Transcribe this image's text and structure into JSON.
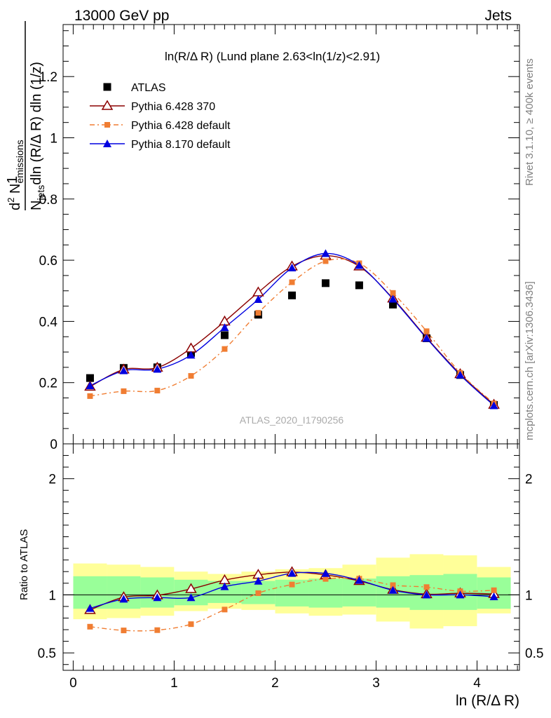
{
  "header": {
    "left": "13000 GeV pp",
    "right": "Jets"
  },
  "side": {
    "top": "Rivet 3.1.10, ≥ 400k events",
    "bottom": "mcplots.cern.ch [arXiv:1306.3436]"
  },
  "watermark": "ATLAS_2020_I1790256",
  "chart_data": {
    "type": "line",
    "title": "ln(R/Δ R) (Lund plane 2.63<ln(1/z)<2.91)",
    "ylabel_main": "1/N_jets d²N_emissions / dln(R/Δ R) dln(1/z)",
    "ylabel_ratio": "Ratio to ATLAS",
    "xlabel": "ln (R/Δ R)",
    "xlim": [
      -0.1,
      4.42
    ],
    "ylim_main": [
      0,
      1.37
    ],
    "ylim_ratio": [
      0.35,
      2.3
    ],
    "x_ticks": [
      "0",
      "1",
      "2",
      "3",
      "4"
    ],
    "y_ticks_main": [
      "0",
      "0.2",
      "0.4",
      "0.6",
      "0.8",
      "1",
      "1.2"
    ],
    "y_ticks_ratio": [
      "0.5",
      "1",
      "2"
    ],
    "x": [
      0.167,
      0.5,
      0.833,
      1.167,
      1.5,
      1.833,
      2.167,
      2.5,
      2.833,
      3.167,
      3.5,
      3.833,
      4.167
    ],
    "series": [
      {
        "name": "ATLAS",
        "color": "#000000",
        "marker": "square",
        "values": [
          0.215,
          0.248,
          0.25,
          0.297,
          0.355,
          0.422,
          0.485,
          0.525,
          0.518,
          0.455,
          0.345,
          0.225,
          0.127
        ]
      },
      {
        "name": "Pythia 6.428 370",
        "color": "#8b0000",
        "marker": "open-triangle",
        "values": [
          0.187,
          0.243,
          0.249,
          0.312,
          0.4,
          0.495,
          0.58,
          0.615,
          0.58,
          0.475,
          0.347,
          0.228,
          0.128
        ]
      },
      {
        "name": "Pythia 6.428 default",
        "color": "#f07d32",
        "marker": "small-square",
        "values": [
          0.156,
          0.172,
          0.174,
          0.222,
          0.31,
          0.428,
          0.528,
          0.597,
          0.59,
          0.493,
          0.368,
          0.232,
          0.132
        ]
      },
      {
        "name": "Pythia 8.170 default",
        "color": "#0000e0",
        "marker": "filled-triangle",
        "values": [
          0.19,
          0.239,
          0.244,
          0.29,
          0.38,
          0.472,
          0.575,
          0.622,
          0.583,
          0.473,
          0.345,
          0.225,
          0.125
        ]
      }
    ],
    "ratio_bands": {
      "green": [
        [
          0.88,
          1.16
        ],
        [
          0.88,
          1.16
        ],
        [
          0.89,
          1.15
        ],
        [
          0.91,
          1.13
        ],
        [
          0.93,
          1.12
        ],
        [
          0.92,
          1.12
        ],
        [
          0.9,
          1.13
        ],
        [
          0.89,
          1.14
        ],
        [
          0.9,
          1.14
        ],
        [
          0.89,
          1.16
        ],
        [
          0.87,
          1.17
        ],
        [
          0.87,
          1.18
        ],
        [
          0.88,
          1.15
        ]
      ],
      "yellow": [
        [
          0.79,
          1.27
        ],
        [
          0.8,
          1.26
        ],
        [
          0.82,
          1.24
        ],
        [
          0.86,
          1.2
        ],
        [
          0.88,
          1.18
        ],
        [
          0.87,
          1.2
        ],
        [
          0.84,
          1.22
        ],
        [
          0.82,
          1.23
        ],
        [
          0.83,
          1.26
        ],
        [
          0.77,
          1.32
        ],
        [
          0.71,
          1.35
        ],
        [
          0.73,
          1.34
        ],
        [
          0.84,
          1.24
        ]
      ]
    },
    "legend_position": "top-left"
  }
}
